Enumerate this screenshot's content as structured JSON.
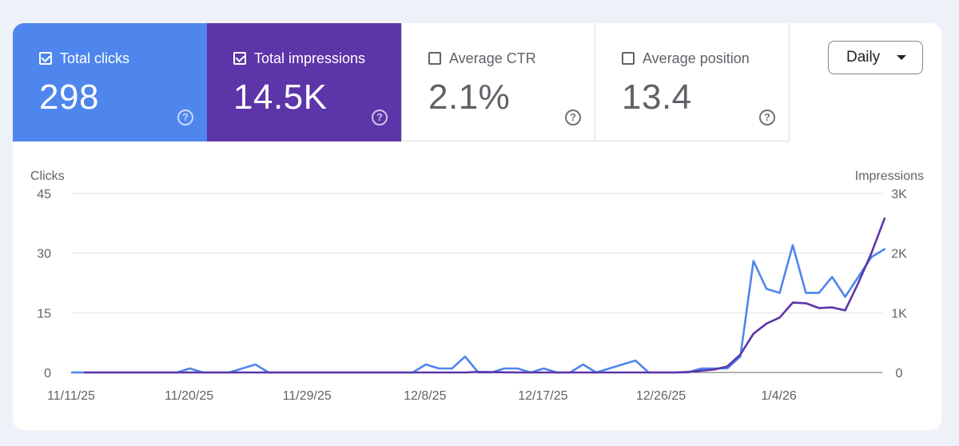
{
  "metrics": {
    "clicks": {
      "label": "Total clicks",
      "value": "298"
    },
    "impressions": {
      "label": "Total impressions",
      "value": "14.5K"
    },
    "ctr": {
      "label": "Average CTR",
      "value": "2.1%"
    },
    "position": {
      "label": "Average position",
      "value": "13.4"
    },
    "help_glyph": "?"
  },
  "range_select": {
    "selected": "Daily"
  },
  "colors": {
    "clicks": "#4f86ed",
    "impressions": "#5c35a8",
    "grid": "#e3e3e3",
    "axis": "#5f6368"
  },
  "chart_data": {
    "type": "line",
    "left_axis_label": "Clicks",
    "right_axis_label": "Impressions",
    "left_ticks": [
      "0",
      "15",
      "30",
      "45"
    ],
    "right_ticks": [
      "0",
      "1K",
      "2K",
      "3K"
    ],
    "left_range": [
      0,
      45
    ],
    "right_range": [
      0,
      3000
    ],
    "x_tick_labels": [
      "11/11/25",
      "11/20/25",
      "11/29/25",
      "12/8/25",
      "12/17/25",
      "12/26/25",
      "1/4/26"
    ],
    "x_tick_indices": [
      0,
      9,
      18,
      27,
      36,
      45,
      54
    ],
    "grid": true,
    "series": [
      {
        "name": "Clicks",
        "axis": "left",
        "values": [
          0,
          0,
          0,
          0,
          0,
          0,
          0,
          0,
          0,
          1,
          0,
          0,
          0,
          1,
          2,
          0,
          0,
          0,
          0,
          0,
          0,
          0,
          0,
          0,
          0,
          0,
          0,
          2,
          1,
          1,
          4,
          0,
          0,
          1,
          1,
          0,
          1,
          0,
          0,
          2,
          0,
          1,
          2,
          3,
          0,
          0,
          0,
          0,
          1,
          1,
          1,
          4,
          28,
          21,
          20,
          32,
          20,
          20,
          24,
          19,
          24,
          29,
          31
        ],
        "x_start": 0
      },
      {
        "name": "Impressions",
        "axis": "right",
        "values": [
          0,
          0,
          0,
          0,
          0,
          0,
          0,
          0,
          0,
          0,
          0,
          0,
          0,
          0,
          0,
          0,
          0,
          0,
          0,
          0,
          0,
          0,
          0,
          0,
          0,
          0,
          0,
          0,
          0,
          0,
          10,
          5,
          3,
          0,
          0,
          0,
          0,
          0,
          0,
          0,
          0,
          0,
          0,
          0,
          0,
          0,
          10,
          30,
          50,
          100,
          300,
          650,
          820,
          920,
          1170,
          1160,
          1080,
          1090,
          1040,
          1500,
          2000,
          2580
        ],
        "x_start": 1
      }
    ]
  }
}
